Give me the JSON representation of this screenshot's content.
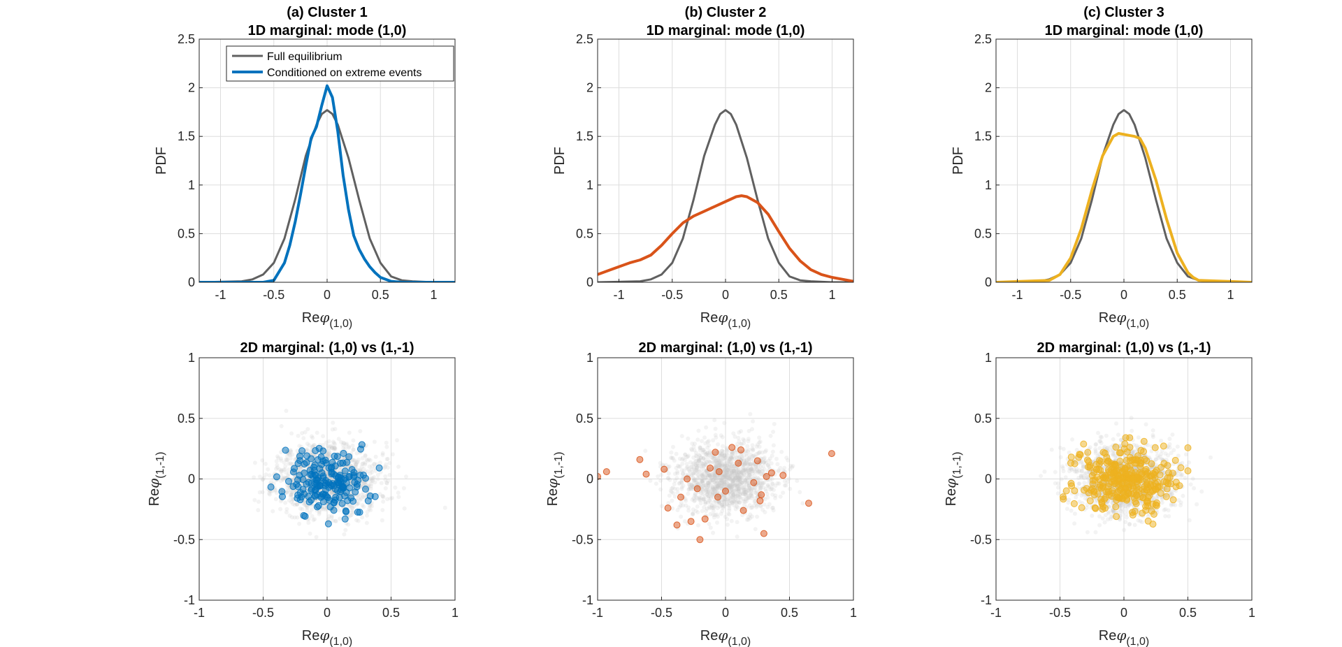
{
  "colors": {
    "full": "#606060",
    "cluster1": "#0072BD",
    "cluster2": "#D95319",
    "cluster3": "#EDB120",
    "scatter_bg": "#c8c8c8",
    "grid": "#dddddd",
    "axis": "#262626"
  },
  "chart_data": [
    {
      "type": "line",
      "title": [
        "(a) Cluster 1",
        "1D marginal: mode (1,0)"
      ],
      "xlabel": {
        "prefix": "Re",
        "symbol": "φ",
        "sub": "(1,0)"
      },
      "ylabel": "PDF",
      "xlim": [
        -1.2,
        1.2
      ],
      "ylim": [
        0,
        2.5
      ],
      "xticks": [
        -1,
        -0.5,
        0,
        0.5,
        1
      ],
      "xticklabels": [
        "-1",
        "-0.5",
        "0",
        "0.5",
        "1"
      ],
      "yticks": [
        0,
        0.5,
        1,
        1.5,
        2,
        2.5
      ],
      "yticklabels": [
        "0",
        "0.5",
        "1",
        "1.5",
        "2",
        "2.5"
      ],
      "grid": true,
      "legend": {
        "placement": "top-center",
        "entries": [
          "Full equilibrium",
          "Conditioned on extreme events"
        ]
      },
      "series": [
        {
          "name": "Full equilibrium",
          "color_key": "full",
          "x": [
            -1.2,
            -0.8,
            -0.7,
            -0.6,
            -0.5,
            -0.4,
            -0.3,
            -0.2,
            -0.1,
            -0.05,
            0,
            0.05,
            0.1,
            0.2,
            0.3,
            0.4,
            0.5,
            0.6,
            0.7,
            0.8,
            1.0,
            1.2
          ],
          "y": [
            0,
            0.01,
            0.03,
            0.08,
            0.2,
            0.45,
            0.85,
            1.3,
            1.62,
            1.73,
            1.77,
            1.73,
            1.62,
            1.28,
            0.85,
            0.45,
            0.2,
            0.06,
            0.02,
            0.01,
            0,
            0
          ]
        },
        {
          "name": "Conditioned on extreme events",
          "color_key": "cluster1",
          "x": [
            -1.2,
            -0.6,
            -0.5,
            -0.4,
            -0.35,
            -0.3,
            -0.25,
            -0.2,
            -0.15,
            -0.1,
            -0.05,
            0,
            0.05,
            0.1,
            0.15,
            0.2,
            0.25,
            0.3,
            0.35,
            0.4,
            0.45,
            0.5,
            0.6,
            0.7,
            1.2
          ],
          "y": [
            0,
            0,
            0.02,
            0.2,
            0.38,
            0.62,
            0.9,
            1.2,
            1.48,
            1.6,
            1.82,
            2.02,
            1.9,
            1.55,
            1.1,
            0.75,
            0.48,
            0.34,
            0.24,
            0.16,
            0.1,
            0.05,
            0.01,
            0,
            0
          ]
        }
      ]
    },
    {
      "type": "line",
      "title": [
        "(b) Cluster 2",
        "1D marginal: mode (1,0)"
      ],
      "xlabel": {
        "prefix": "Re",
        "symbol": "φ",
        "sub": "(1,0)"
      },
      "ylabel": "PDF",
      "xlim": [
        -1.2,
        1.2
      ],
      "ylim": [
        0,
        2.5
      ],
      "xticks": [
        -1,
        -0.5,
        0,
        0.5,
        1
      ],
      "xticklabels": [
        "-1",
        "-0.5",
        "0",
        "0.5",
        "1"
      ],
      "yticks": [
        0,
        0.5,
        1,
        1.5,
        2,
        2.5
      ],
      "yticklabels": [
        "0",
        "0.5",
        "1",
        "1.5",
        "2",
        "2.5"
      ],
      "grid": true,
      "series": [
        {
          "name": "Full equilibrium",
          "color_key": "full",
          "x": [
            -1.2,
            -0.8,
            -0.7,
            -0.6,
            -0.5,
            -0.4,
            -0.3,
            -0.2,
            -0.1,
            -0.05,
            0,
            0.05,
            0.1,
            0.2,
            0.3,
            0.4,
            0.5,
            0.6,
            0.7,
            0.8,
            1.0,
            1.2
          ],
          "y": [
            0,
            0.01,
            0.03,
            0.08,
            0.2,
            0.45,
            0.85,
            1.3,
            1.62,
            1.73,
            1.77,
            1.73,
            1.62,
            1.28,
            0.85,
            0.45,
            0.2,
            0.06,
            0.02,
            0.01,
            0,
            0
          ]
        },
        {
          "name": "Conditioned on extreme events",
          "color_key": "cluster2",
          "x": [
            -1.2,
            -1.1,
            -1.0,
            -0.9,
            -0.8,
            -0.7,
            -0.6,
            -0.5,
            -0.4,
            -0.3,
            -0.2,
            -0.1,
            0,
            0.1,
            0.15,
            0.2,
            0.3,
            0.4,
            0.5,
            0.6,
            0.7,
            0.8,
            0.9,
            1.0,
            1.1,
            1.2
          ],
          "y": [
            0.08,
            0.12,
            0.16,
            0.2,
            0.23,
            0.28,
            0.38,
            0.5,
            0.61,
            0.68,
            0.73,
            0.78,
            0.83,
            0.88,
            0.89,
            0.88,
            0.82,
            0.7,
            0.52,
            0.35,
            0.22,
            0.13,
            0.08,
            0.05,
            0.03,
            0.01
          ]
        }
      ]
    },
    {
      "type": "line",
      "title": [
        "(c) Cluster 3",
        "1D marginal: mode (1,0)"
      ],
      "xlabel": {
        "prefix": "Re",
        "symbol": "φ",
        "sub": "(1,0)"
      },
      "ylabel": "PDF",
      "xlim": [
        -1.2,
        1.2
      ],
      "ylim": [
        0,
        2.5
      ],
      "xticks": [
        -1,
        -0.5,
        0,
        0.5,
        1
      ],
      "xticklabels": [
        "-1",
        "-0.5",
        "0",
        "0.5",
        "1"
      ],
      "yticks": [
        0,
        0.5,
        1,
        1.5,
        2,
        2.5
      ],
      "yticklabels": [
        "0",
        "0.5",
        "1",
        "1.5",
        "2",
        "2.5"
      ],
      "grid": true,
      "series": [
        {
          "name": "Full equilibrium",
          "color_key": "full",
          "x": [
            -1.2,
            -0.8,
            -0.7,
            -0.6,
            -0.5,
            -0.4,
            -0.3,
            -0.2,
            -0.1,
            -0.05,
            0,
            0.05,
            0.1,
            0.2,
            0.3,
            0.4,
            0.5,
            0.6,
            0.7,
            0.8,
            1.0,
            1.2
          ],
          "y": [
            0,
            0.01,
            0.03,
            0.08,
            0.2,
            0.45,
            0.85,
            1.3,
            1.62,
            1.73,
            1.77,
            1.73,
            1.62,
            1.28,
            0.85,
            0.45,
            0.2,
            0.06,
            0.02,
            0.01,
            0,
            0
          ]
        },
        {
          "name": "Conditioned on extreme events",
          "color_key": "cluster3",
          "x": [
            -1.2,
            -0.7,
            -0.6,
            -0.5,
            -0.4,
            -0.3,
            -0.2,
            -0.1,
            -0.05,
            0,
            0.05,
            0.1,
            0.15,
            0.2,
            0.3,
            0.4,
            0.5,
            0.6,
            0.65,
            0.7,
            1.2
          ],
          "y": [
            0,
            0.02,
            0.08,
            0.25,
            0.55,
            0.95,
            1.3,
            1.5,
            1.53,
            1.52,
            1.51,
            1.5,
            1.48,
            1.38,
            1.05,
            0.65,
            0.3,
            0.1,
            0.05,
            0.02,
            0
          ]
        }
      ]
    },
    {
      "type": "scatter",
      "title": [
        "2D marginal: (1,0) vs (1,-1)"
      ],
      "xlabel": {
        "prefix": "Re",
        "symbol": "φ",
        "sub": "(1,0)"
      },
      "ylabel": {
        "prefix": "Re",
        "symbol": "φ",
        "sub": "(1,-1)"
      },
      "xlim": [
        -1,
        1
      ],
      "ylim": [
        -1,
        1
      ],
      "xticks": [
        -1,
        -0.5,
        0,
        0.5,
        1
      ],
      "xticklabels": [
        "-1",
        "-0.5",
        "0",
        "0.5",
        "1"
      ],
      "yticks": [
        -1,
        -0.5,
        0,
        0.5,
        1
      ],
      "yticklabels": [
        "-1",
        "-0.5",
        "0",
        "0.5",
        "1"
      ],
      "grid": true,
      "series": [
        {
          "name": "Full equilibrium",
          "color_key": "scatter_bg",
          "cloud": {
            "n": 1400,
            "sx": 0.2,
            "sy": 0.15,
            "seed": 11
          }
        },
        {
          "name": "Conditioned on extreme events",
          "color_key": "cluster1",
          "cloud": {
            "n": 180,
            "sx": 0.16,
            "sy": 0.13,
            "mx": 0.0,
            "my": -0.02,
            "clip": 0.5,
            "seed": 101
          }
        }
      ]
    },
    {
      "type": "scatter",
      "title": [
        "2D marginal: (1,0) vs (1,-1)"
      ],
      "xlabel": {
        "prefix": "Re",
        "symbol": "φ",
        "sub": "(1,0)"
      },
      "ylabel": {
        "prefix": "Re",
        "symbol": "φ",
        "sub": "(1,-1)"
      },
      "xlim": [
        -1,
        1
      ],
      "ylim": [
        -1,
        1
      ],
      "xticks": [
        -1,
        -0.5,
        0,
        0.5,
        1
      ],
      "xticklabels": [
        "-1",
        "-0.5",
        "0",
        "0.5",
        "1"
      ],
      "yticks": [
        -1,
        -0.5,
        0,
        0.5,
        1
      ],
      "yticklabels": [
        "-1",
        "-0.5",
        "0",
        "0.5",
        "1"
      ],
      "grid": true,
      "series": [
        {
          "name": "Full equilibrium",
          "color_key": "scatter_bg",
          "cloud": {
            "n": 1400,
            "sx": 0.2,
            "sy": 0.15,
            "seed": 23
          }
        },
        {
          "name": "Conditioned on extreme events",
          "color_key": "cluster2",
          "x": [
            -1.0,
            -0.93,
            -0.67,
            -0.62,
            -0.48,
            -0.45,
            -0.38,
            -0.35,
            -0.3,
            -0.27,
            -0.22,
            -0.2,
            -0.16,
            -0.08,
            -0.06,
            -0.05,
            0.0,
            0.05,
            0.1,
            0.12,
            0.14,
            0.25,
            0.27,
            0.28,
            0.3,
            0.32,
            0.36,
            0.45,
            0.65,
            0.83,
            -0.12,
            0.22
          ],
          "y": [
            0.02,
            0.06,
            0.16,
            0.04,
            0.08,
            -0.24,
            -0.38,
            -0.15,
            0.0,
            -0.35,
            -0.08,
            -0.5,
            -0.33,
            0.22,
            -0.15,
            0.06,
            -0.1,
            0.26,
            0.13,
            0.24,
            -0.26,
            0.15,
            -0.18,
            -0.13,
            -0.45,
            0.02,
            0.05,
            0.03,
            -0.2,
            0.21,
            0.09,
            -0.03
          ]
        }
      ]
    },
    {
      "type": "scatter",
      "title": [
        "2D marginal: (1,0) vs (1,-1)"
      ],
      "xlabel": {
        "prefix": "Re",
        "symbol": "φ",
        "sub": "(1,0)"
      },
      "ylabel": {
        "prefix": "Re",
        "symbol": "φ",
        "sub": "(1,-1)"
      },
      "xlim": [
        -1,
        1
      ],
      "ylim": [
        -1,
        1
      ],
      "xticks": [
        -1,
        -0.5,
        0,
        0.5,
        1
      ],
      "xticklabels": [
        "-1",
        "-0.5",
        "0",
        "0.5",
        "1"
      ],
      "yticks": [
        -1,
        -0.5,
        0,
        0.5,
        1
      ],
      "yticklabels": [
        "-1",
        "-0.5",
        "0",
        "0.5",
        "1"
      ],
      "grid": true,
      "series": [
        {
          "name": "Full equilibrium",
          "color_key": "scatter_bg",
          "cloud": {
            "n": 1400,
            "sx": 0.2,
            "sy": 0.15,
            "seed": 37
          }
        },
        {
          "name": "Conditioned on extreme events",
          "color_key": "cluster3",
          "cloud": {
            "n": 320,
            "sx": 0.19,
            "sy": 0.13,
            "mx": 0.0,
            "my": 0.0,
            "clip": 0.5,
            "seed": 303
          }
        }
      ]
    }
  ]
}
